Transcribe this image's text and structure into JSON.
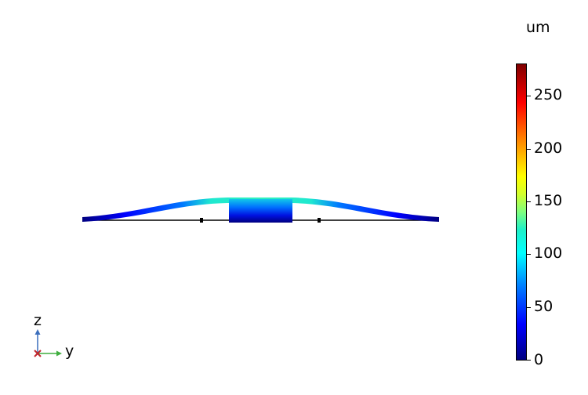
{
  "colorbar": {
    "unit": "um",
    "ticks": [
      "250",
      "200",
      "150",
      "100",
      "50",
      "0"
    ]
  },
  "axes": {
    "z_label": "z",
    "y_label": "y",
    "x_label": "x"
  },
  "colors": {
    "z_axis": "#3b6ebc",
    "y_axis": "#3fae3f",
    "x_axis": "#c0262d"
  }
}
